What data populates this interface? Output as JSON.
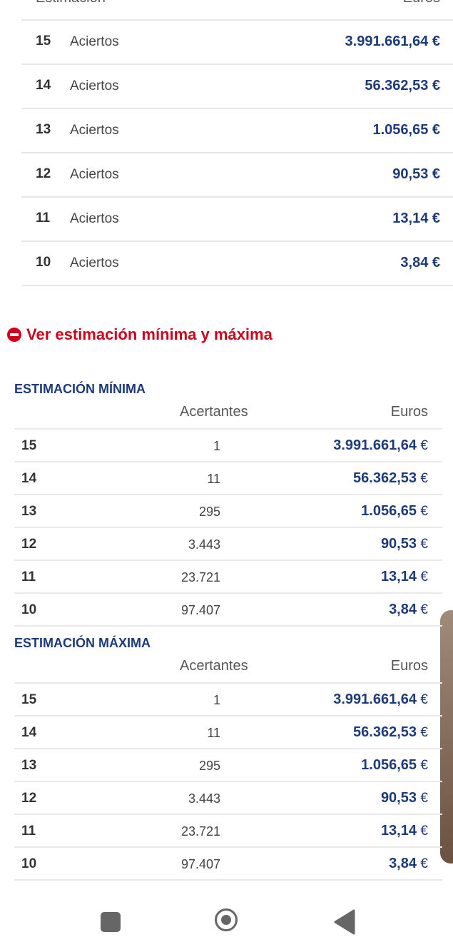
{
  "top_table": {
    "headers": [
      "Estimación",
      "Euros"
    ],
    "rows": [
      {
        "hits": "15",
        "label": "Aciertos",
        "amount": "3.991.661,64 €"
      },
      {
        "hits": "14",
        "label": "Aciertos",
        "amount": "56.362,53 €"
      },
      {
        "hits": "13",
        "label": "Aciertos",
        "amount": "1.056,65 €"
      },
      {
        "hits": "12",
        "label": "Aciertos",
        "amount": "90,53 €"
      },
      {
        "hits": "11",
        "label": "Aciertos",
        "amount": "13,14 €"
      },
      {
        "hits": "10",
        "label": "Aciertos",
        "amount": "3,84 €"
      }
    ]
  },
  "toggle": {
    "label": "Ver estimación mínima y máxima"
  },
  "min_table": {
    "title": "ESTIMACIÓN MÍNIMA",
    "headers": [
      "Acertantes",
      "Euros"
    ],
    "rows": [
      {
        "hits": "15",
        "winners": "1",
        "amount": "3.991.661,64",
        "currency": "€"
      },
      {
        "hits": "14",
        "winners": "11",
        "amount": "56.362,53",
        "currency": "€"
      },
      {
        "hits": "13",
        "winners": "295",
        "amount": "1.056,65",
        "currency": "€"
      },
      {
        "hits": "12",
        "winners": "3.443",
        "amount": "90,53",
        "currency": "€"
      },
      {
        "hits": "11",
        "winners": "23.721",
        "amount": "13,14",
        "currency": "€"
      },
      {
        "hits": "10",
        "winners": "97.407",
        "amount": "3,84",
        "currency": "€"
      }
    ]
  },
  "max_table": {
    "title": "ESTIMACIÓN MÁXIMA",
    "headers": [
      "Acertantes",
      "Euros"
    ],
    "rows": [
      {
        "hits": "15",
        "winners": "1",
        "amount": "3.991.661,64",
        "currency": "€"
      },
      {
        "hits": "14",
        "winners": "11",
        "amount": "56.362,53",
        "currency": "€"
      },
      {
        "hits": "13",
        "winners": "295",
        "amount": "1.056,65",
        "currency": "€"
      },
      {
        "hits": "12",
        "winners": "3.443",
        "amount": "90,53",
        "currency": "€"
      },
      {
        "hits": "11",
        "winners": "23.721",
        "amount": "13,14",
        "currency": "€"
      },
      {
        "hits": "10",
        "winners": "97.407",
        "amount": "3,84",
        "currency": "€"
      }
    ]
  }
}
